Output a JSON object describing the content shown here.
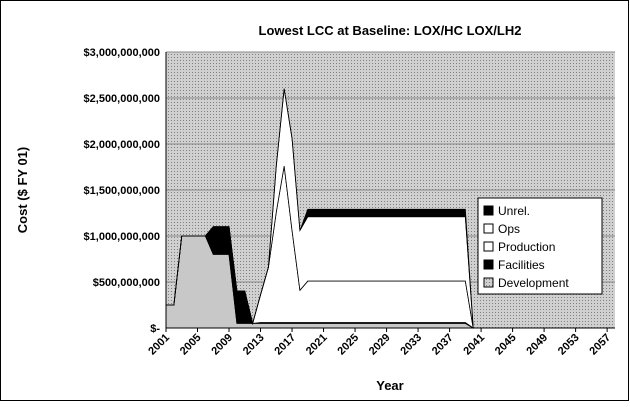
{
  "chart_data": {
    "type": "area",
    "stacked": true,
    "title": "Lowest LCC at Baseline: LOX/HC LOX/LH2",
    "x_label": "Year",
    "y_label": "Cost ($ FY 01)",
    "x": [
      2001,
      2002,
      2003,
      2004,
      2005,
      2006,
      2007,
      2008,
      2009,
      2010,
      2011,
      2012,
      2013,
      2014,
      2015,
      2016,
      2017,
      2018,
      2019,
      2020,
      2021,
      2022,
      2023,
      2024,
      2025,
      2026,
      2027,
      2028,
      2029,
      2030,
      2031,
      2032,
      2033,
      2034,
      2035,
      2036,
      2037,
      2038,
      2039,
      2040
    ],
    "xlim": [
      2001,
      2058
    ],
    "xticks": [
      2001,
      2005,
      2009,
      2013,
      2017,
      2021,
      2025,
      2029,
      2033,
      2037,
      2041,
      2045,
      2049,
      2053,
      2057
    ],
    "ylim": [
      0,
      3000000000
    ],
    "yticks": [
      {
        "value": 0,
        "label": "$-"
      },
      {
        "value": 500000000,
        "label": "$500,000,000"
      },
      {
        "value": 1000000000,
        "label": "$1,000,000,000"
      },
      {
        "value": 1500000000,
        "label": "$1,500,000,000"
      },
      {
        "value": 2000000000,
        "label": "$2,000,000,000"
      },
      {
        "value": 2500000000,
        "label": "$2,500,000,000"
      },
      {
        "value": 3000000000,
        "label": "$3,000,000,000"
      }
    ],
    "grid": true,
    "legend": "right",
    "series": [
      {
        "name": "Development",
        "color": "#c8c8c8",
        "values": [
          250000000,
          250000000,
          1000000000,
          1000000000,
          1000000000,
          1000000000,
          800000000,
          800000000,
          800000000,
          50000000,
          50000000,
          50000000,
          50000000,
          50000000,
          50000000,
          50000000,
          50000000,
          50000000,
          50000000,
          50000000,
          50000000,
          50000000,
          50000000,
          50000000,
          50000000,
          50000000,
          50000000,
          50000000,
          50000000,
          50000000,
          50000000,
          50000000,
          50000000,
          50000000,
          50000000,
          50000000,
          50000000,
          50000000,
          50000000,
          0
        ]
      },
      {
        "name": "Facilities",
        "color": "#000000",
        "values": [
          0,
          0,
          0,
          0,
          0,
          0,
          300000000,
          300000000,
          300000000,
          350000000,
          350000000,
          0,
          10000000,
          10000000,
          10000000,
          10000000,
          10000000,
          10000000,
          10000000,
          10000000,
          10000000,
          10000000,
          10000000,
          10000000,
          10000000,
          10000000,
          10000000,
          10000000,
          10000000,
          10000000,
          10000000,
          10000000,
          10000000,
          10000000,
          10000000,
          10000000,
          10000000,
          10000000,
          10000000,
          0
        ]
      },
      {
        "name": "Production",
        "color": "#ffffff",
        "values": [
          0,
          0,
          0,
          0,
          0,
          0,
          0,
          0,
          0,
          0,
          0,
          0,
          300000000,
          600000000,
          1200000000,
          1700000000,
          1000000000,
          350000000,
          450000000,
          450000000,
          450000000,
          450000000,
          450000000,
          450000000,
          450000000,
          450000000,
          450000000,
          450000000,
          450000000,
          450000000,
          450000000,
          450000000,
          450000000,
          450000000,
          450000000,
          450000000,
          450000000,
          450000000,
          450000000,
          0
        ]
      },
      {
        "name": "Ops",
        "color": "#ffffff",
        "values": [
          0,
          0,
          0,
          0,
          0,
          0,
          0,
          0,
          0,
          0,
          0,
          0,
          0,
          0,
          500000000,
          840000000,
          1000000000,
          650000000,
          700000000,
          700000000,
          700000000,
          700000000,
          700000000,
          700000000,
          700000000,
          700000000,
          700000000,
          700000000,
          700000000,
          700000000,
          700000000,
          700000000,
          700000000,
          700000000,
          700000000,
          700000000,
          700000000,
          700000000,
          700000000,
          0
        ]
      },
      {
        "name": "Unrel.",
        "color": "#000000",
        "values": [
          0,
          0,
          0,
          0,
          0,
          0,
          0,
          0,
          0,
          0,
          0,
          0,
          0,
          0,
          0,
          0,
          0,
          0,
          80000000,
          80000000,
          80000000,
          80000000,
          80000000,
          80000000,
          80000000,
          80000000,
          80000000,
          80000000,
          80000000,
          80000000,
          80000000,
          80000000,
          80000000,
          80000000,
          80000000,
          80000000,
          80000000,
          80000000,
          80000000,
          0
        ]
      }
    ]
  }
}
